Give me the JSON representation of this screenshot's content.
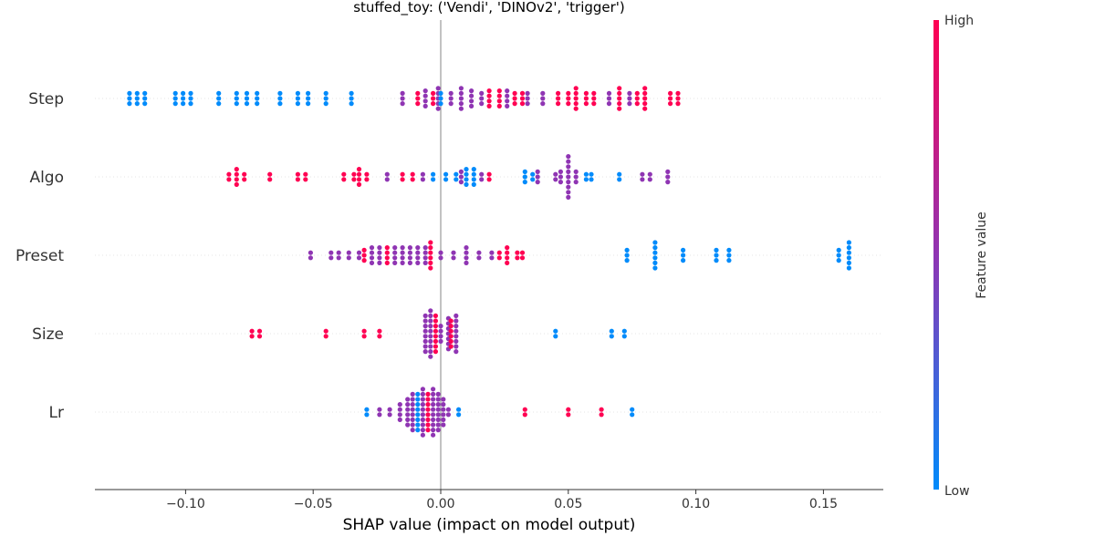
{
  "chart_data": {
    "type": "scatter",
    "title": "stuffed_toy: ('Vendi', 'DINOv2', 'trigger')",
    "xlabel": "SHAP value (impact on model output)",
    "xlim": [
      -0.135,
      0.175
    ],
    "xticks": [
      -0.1,
      -0.05,
      0.0,
      0.05,
      0.1,
      0.15
    ],
    "xtick_labels": [
      "−0.10",
      "−0.05",
      "0.00",
      "0.05",
      "0.10",
      "0.15"
    ],
    "features": [
      "Step",
      "Algo",
      "Preset",
      "Size",
      "Lr"
    ],
    "colorbar": {
      "label": "Feature value",
      "high_label": "High",
      "low_label": "Low",
      "low_color": "#008bfb",
      "mid_color": "#8f35b3",
      "high_color": "#ff0052"
    },
    "series": [
      {
        "feature": "Step",
        "groups": [
          {
            "x": -0.122,
            "n": 3,
            "v": 0
          },
          {
            "x": -0.119,
            "n": 3,
            "v": 0
          },
          {
            "x": -0.116,
            "n": 3,
            "v": 0
          },
          {
            "x": -0.104,
            "n": 3,
            "v": 0
          },
          {
            "x": -0.101,
            "n": 3,
            "v": 0
          },
          {
            "x": -0.098,
            "n": 3,
            "v": 0
          },
          {
            "x": -0.087,
            "n": 3,
            "v": 0
          },
          {
            "x": -0.08,
            "n": 3,
            "v": 0
          },
          {
            "x": -0.076,
            "n": 3,
            "v": 0
          },
          {
            "x": -0.072,
            "n": 3,
            "v": 0
          },
          {
            "x": -0.063,
            "n": 3,
            "v": 0
          },
          {
            "x": -0.056,
            "n": 3,
            "v": 0
          },
          {
            "x": -0.052,
            "n": 3,
            "v": 0
          },
          {
            "x": -0.045,
            "n": 3,
            "v": 0
          },
          {
            "x": -0.035,
            "n": 3,
            "v": 0
          },
          {
            "x": -0.015,
            "n": 3,
            "v": 0.5
          },
          {
            "x": -0.009,
            "n": 3,
            "v": 1
          },
          {
            "x": -0.006,
            "n": 4,
            "v": 0.5
          },
          {
            "x": -0.003,
            "n": 3,
            "v": 1
          },
          {
            "x": -0.001,
            "n": 5,
            "v": 0.5
          },
          {
            "x": 0.0,
            "n": 3,
            "v": 0
          },
          {
            "x": 0.004,
            "n": 3,
            "v": 0.5
          },
          {
            "x": 0.008,
            "n": 5,
            "v": 0.5
          },
          {
            "x": 0.012,
            "n": 4,
            "v": 0.5
          },
          {
            "x": 0.016,
            "n": 3,
            "v": 0.5
          },
          {
            "x": 0.019,
            "n": 4,
            "v": 1
          },
          {
            "x": 0.023,
            "n": 4,
            "v": 1
          },
          {
            "x": 0.026,
            "n": 4,
            "v": 0.5
          },
          {
            "x": 0.029,
            "n": 3,
            "v": 1
          },
          {
            "x": 0.032,
            "n": 3,
            "v": 1
          },
          {
            "x": 0.034,
            "n": 3,
            "v": 0.5
          },
          {
            "x": 0.04,
            "n": 3,
            "v": 0.5
          },
          {
            "x": 0.046,
            "n": 3,
            "v": 1
          },
          {
            "x": 0.05,
            "n": 3,
            "v": 1
          },
          {
            "x": 0.053,
            "n": 5,
            "v": 1
          },
          {
            "x": 0.057,
            "n": 3,
            "v": 1
          },
          {
            "x": 0.06,
            "n": 3,
            "v": 1
          },
          {
            "x": 0.066,
            "n": 3,
            "v": 0.5
          },
          {
            "x": 0.07,
            "n": 5,
            "v": 1
          },
          {
            "x": 0.074,
            "n": 3,
            "v": 0.5
          },
          {
            "x": 0.077,
            "n": 3,
            "v": 1
          },
          {
            "x": 0.08,
            "n": 5,
            "v": 1
          },
          {
            "x": 0.09,
            "n": 3,
            "v": 1
          },
          {
            "x": 0.093,
            "n": 3,
            "v": 1
          }
        ]
      },
      {
        "feature": "Algo",
        "groups": [
          {
            "x": -0.083,
            "n": 2,
            "v": 1
          },
          {
            "x": -0.08,
            "n": 4,
            "v": 1
          },
          {
            "x": -0.077,
            "n": 2,
            "v": 1
          },
          {
            "x": -0.067,
            "n": 2,
            "v": 1
          },
          {
            "x": -0.056,
            "n": 2,
            "v": 1
          },
          {
            "x": -0.053,
            "n": 2,
            "v": 1
          },
          {
            "x": -0.038,
            "n": 2,
            "v": 1
          },
          {
            "x": -0.034,
            "n": 2,
            "v": 1
          },
          {
            "x": -0.032,
            "n": 4,
            "v": 1
          },
          {
            "x": -0.029,
            "n": 2,
            "v": 1
          },
          {
            "x": -0.021,
            "n": 2,
            "v": 0.5
          },
          {
            "x": -0.015,
            "n": 2,
            "v": 1
          },
          {
            "x": -0.011,
            "n": 2,
            "v": 1
          },
          {
            "x": -0.007,
            "n": 2,
            "v": 0.5
          },
          {
            "x": -0.003,
            "n": 2,
            "v": 0
          },
          {
            "x": 0.002,
            "n": 2,
            "v": 0
          },
          {
            "x": 0.006,
            "n": 2,
            "v": 0
          },
          {
            "x": 0.008,
            "n": 3,
            "v": 0.5
          },
          {
            "x": 0.01,
            "n": 4,
            "v": 0
          },
          {
            "x": 0.013,
            "n": 4,
            "v": 0
          },
          {
            "x": 0.016,
            "n": 2,
            "v": 0.5
          },
          {
            "x": 0.019,
            "n": 2,
            "v": 1
          },
          {
            "x": 0.033,
            "n": 3,
            "v": 0
          },
          {
            "x": 0.036,
            "n": 2,
            "v": 0
          },
          {
            "x": 0.038,
            "n": 3,
            "v": 0.5
          },
          {
            "x": 0.045,
            "n": 2,
            "v": 0.5
          },
          {
            "x": 0.047,
            "n": 3,
            "v": 0.5
          },
          {
            "x": 0.05,
            "n": 9,
            "v": 0.5
          },
          {
            "x": 0.053,
            "n": 3,
            "v": 0.5
          },
          {
            "x": 0.057,
            "n": 2,
            "v": 0
          },
          {
            "x": 0.059,
            "n": 2,
            "v": 0
          },
          {
            "x": 0.07,
            "n": 2,
            "v": 0
          },
          {
            "x": 0.079,
            "n": 2,
            "v": 0.5
          },
          {
            "x": 0.082,
            "n": 2,
            "v": 0.5
          },
          {
            "x": 0.089,
            "n": 3,
            "v": 0.5
          }
        ]
      },
      {
        "feature": "Preset",
        "groups": [
          {
            "x": -0.051,
            "n": 2,
            "v": 0.5
          },
          {
            "x": -0.043,
            "n": 2,
            "v": 0.5
          },
          {
            "x": -0.04,
            "n": 2,
            "v": 0.5
          },
          {
            "x": -0.036,
            "n": 2,
            "v": 0.5
          },
          {
            "x": -0.032,
            "n": 2,
            "v": 0.5
          },
          {
            "x": -0.03,
            "n": 3,
            "v": 1
          },
          {
            "x": -0.027,
            "n": 4,
            "v": 0.5
          },
          {
            "x": -0.024,
            "n": 4,
            "v": 0.5
          },
          {
            "x": -0.021,
            "n": 4,
            "v": 1
          },
          {
            "x": -0.018,
            "n": 4,
            "v": 0.5
          },
          {
            "x": -0.015,
            "n": 4,
            "v": 0.5
          },
          {
            "x": -0.012,
            "n": 4,
            "v": 0.5
          },
          {
            "x": -0.009,
            "n": 4,
            "v": 0.5
          },
          {
            "x": -0.006,
            "n": 4,
            "v": 0.5
          },
          {
            "x": -0.004,
            "n": 6,
            "v": 1
          },
          {
            "x": 0.0,
            "n": 2,
            "v": 0.5
          },
          {
            "x": 0.005,
            "n": 2,
            "v": 0.5
          },
          {
            "x": 0.01,
            "n": 4,
            "v": 0.5
          },
          {
            "x": 0.015,
            "n": 2,
            "v": 0.5
          },
          {
            "x": 0.02,
            "n": 2,
            "v": 0.5
          },
          {
            "x": 0.023,
            "n": 2,
            "v": 1
          },
          {
            "x": 0.026,
            "n": 4,
            "v": 1
          },
          {
            "x": 0.03,
            "n": 2,
            "v": 1
          },
          {
            "x": 0.032,
            "n": 2,
            "v": 1
          },
          {
            "x": 0.073,
            "n": 3,
            "v": 0
          },
          {
            "x": 0.084,
            "n": 6,
            "v": 0
          },
          {
            "x": 0.095,
            "n": 3,
            "v": 0
          },
          {
            "x": 0.108,
            "n": 3,
            "v": 0
          },
          {
            "x": 0.113,
            "n": 3,
            "v": 0
          },
          {
            "x": 0.156,
            "n": 3,
            "v": 0
          },
          {
            "x": 0.16,
            "n": 6,
            "v": 0
          }
        ]
      },
      {
        "feature": "Size",
        "groups": [
          {
            "x": -0.074,
            "n": 2,
            "v": 1
          },
          {
            "x": -0.071,
            "n": 2,
            "v": 1
          },
          {
            "x": -0.045,
            "n": 2,
            "v": 1
          },
          {
            "x": -0.03,
            "n": 2,
            "v": 1
          },
          {
            "x": -0.024,
            "n": 2,
            "v": 1
          },
          {
            "x": -0.006,
            "n": 8,
            "v": 0.5
          },
          {
            "x": -0.004,
            "n": 10,
            "v": 0.5
          },
          {
            "x": -0.002,
            "n": 8,
            "v": 1
          },
          {
            "x": 0.0,
            "n": 4,
            "v": 0.5
          },
          {
            "x": 0.003,
            "n": 7,
            "v": 0.5
          },
          {
            "x": 0.004,
            "n": 6,
            "v": 1
          },
          {
            "x": 0.006,
            "n": 8,
            "v": 0.5
          },
          {
            "x": 0.045,
            "n": 2,
            "v": 0
          },
          {
            "x": 0.067,
            "n": 2,
            "v": 0
          },
          {
            "x": 0.072,
            "n": 2,
            "v": 0
          }
        ]
      },
      {
        "feature": "Lr",
        "groups": [
          {
            "x": -0.029,
            "n": 2,
            "v": 0
          },
          {
            "x": -0.024,
            "n": 2,
            "v": 0.5
          },
          {
            "x": -0.02,
            "n": 2,
            "v": 0.5
          },
          {
            "x": -0.016,
            "n": 4,
            "v": 0.5
          },
          {
            "x": -0.013,
            "n": 6,
            "v": 0.5
          },
          {
            "x": -0.011,
            "n": 8,
            "v": 0.5
          },
          {
            "x": -0.009,
            "n": 8,
            "v": 0
          },
          {
            "x": -0.007,
            "n": 10,
            "v": 0.5
          },
          {
            "x": -0.005,
            "n": 8,
            "v": 1
          },
          {
            "x": -0.003,
            "n": 10,
            "v": 0.5
          },
          {
            "x": -0.001,
            "n": 8,
            "v": 0.5
          },
          {
            "x": 0.001,
            "n": 6,
            "v": 0.5
          },
          {
            "x": 0.003,
            "n": 2,
            "v": 0.5
          },
          {
            "x": 0.007,
            "n": 2,
            "v": 0
          },
          {
            "x": 0.033,
            "n": 2,
            "v": 1
          },
          {
            "x": 0.05,
            "n": 2,
            "v": 1
          },
          {
            "x": 0.063,
            "n": 2,
            "v": 1
          },
          {
            "x": 0.075,
            "n": 2,
            "v": 0
          }
        ]
      }
    ]
  }
}
